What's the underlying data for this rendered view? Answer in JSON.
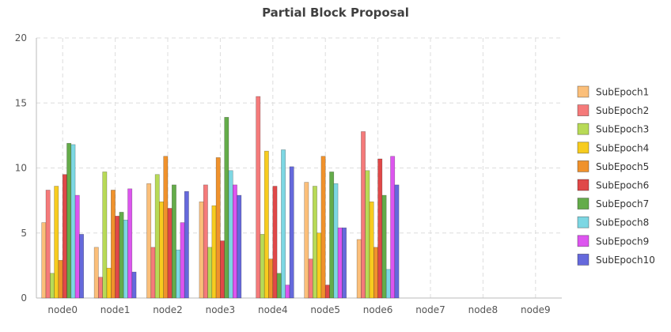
{
  "chart_data": {
    "type": "bar",
    "title": "Partial Block Proposal",
    "xlabel": "",
    "ylabel": "",
    "ylim": [
      0,
      20
    ],
    "yticks": [
      0,
      5,
      10,
      15,
      20
    ],
    "grid": true,
    "legend_position": "right",
    "categories": [
      "node0",
      "node1",
      "node2",
      "node3",
      "node4",
      "node5",
      "node6",
      "node7",
      "node8",
      "node9"
    ],
    "series": [
      {
        "name": "SubEpoch1",
        "color": "#fbbf7a",
        "values": [
          5.8,
          3.9,
          8.8,
          7.4,
          0,
          8.9,
          4.5,
          null,
          null,
          null
        ]
      },
      {
        "name": "SubEpoch2",
        "color": "#f57a7a",
        "values": [
          8.3,
          1.6,
          3.9,
          8.7,
          15.5,
          3.0,
          12.8,
          null,
          null,
          null
        ]
      },
      {
        "name": "SubEpoch3",
        "color": "#b8da57",
        "values": [
          1.9,
          9.7,
          9.5,
          3.9,
          4.9,
          8.6,
          9.8,
          null,
          null,
          null
        ]
      },
      {
        "name": "SubEpoch4",
        "color": "#f7cc1f",
        "values": [
          8.6,
          2.3,
          7.4,
          7.1,
          11.3,
          5.0,
          7.4,
          null,
          null,
          null
        ]
      },
      {
        "name": "SubEpoch5",
        "color": "#f0922c",
        "values": [
          2.9,
          8.3,
          10.9,
          10.8,
          3.0,
          10.9,
          3.9,
          null,
          null,
          null
        ]
      },
      {
        "name": "SubEpoch6",
        "color": "#e04848",
        "values": [
          9.5,
          6.3,
          6.9,
          4.4,
          8.6,
          1.0,
          10.7,
          null,
          null,
          null
        ]
      },
      {
        "name": "SubEpoch7",
        "color": "#64ac4a",
        "values": [
          11.9,
          6.6,
          8.7,
          13.9,
          1.9,
          9.7,
          7.9,
          null,
          null,
          null
        ]
      },
      {
        "name": "SubEpoch8",
        "color": "#7dd7e3",
        "values": [
          11.8,
          6.0,
          3.7,
          9.8,
          11.4,
          8.8,
          2.2,
          null,
          null,
          null
        ]
      },
      {
        "name": "SubEpoch9",
        "color": "#dd55ef",
        "values": [
          7.9,
          8.4,
          5.8,
          8.7,
          1.0,
          5.4,
          10.9,
          null,
          null,
          null
        ]
      },
      {
        "name": "SubEpoch10",
        "color": "#6569dc",
        "values": [
          4.9,
          2.0,
          8.2,
          7.9,
          10.1,
          5.4,
          8.7,
          null,
          null,
          null
        ]
      }
    ]
  }
}
